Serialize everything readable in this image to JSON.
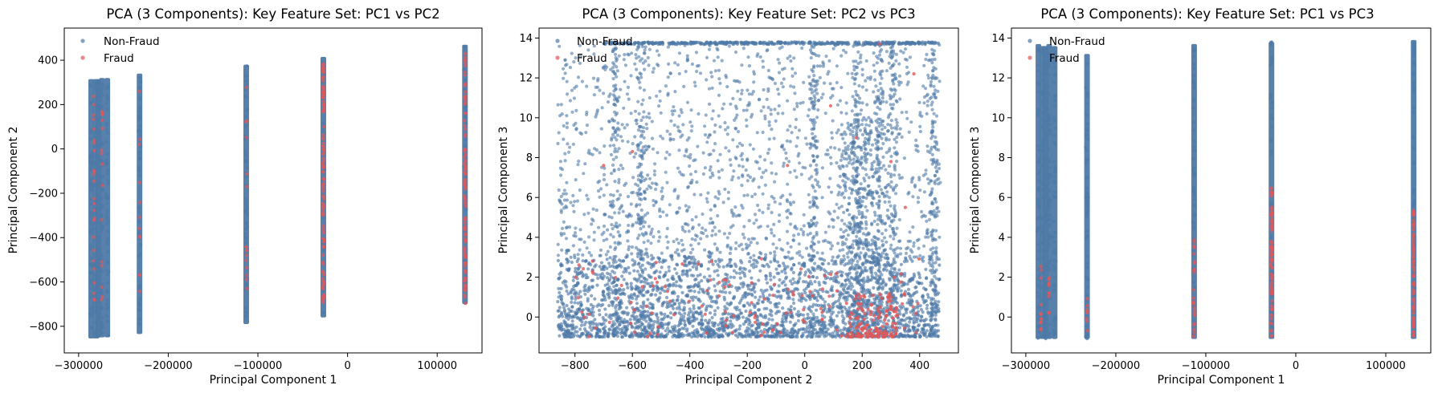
{
  "colors": {
    "nonfraud": "#4e79a7",
    "fraud": "#e15759"
  },
  "legend": {
    "nonfraud_label": "Non-Fraud",
    "fraud_label": "Fraud",
    "placement": "upper-left"
  },
  "chart_data": [
    {
      "type": "scatter",
      "title": "PCA (3 Components): Key Feature Set: PC1 vs PC2",
      "xlabel": "Principal Component 1",
      "ylabel": "Principal Component 2",
      "xlim": [
        -316000,
        150000
      ],
      "ylim": [
        -920,
        545
      ],
      "xticks": [
        -300000,
        -200000,
        -100000,
        0,
        100000
      ],
      "xtick_labels": [
        "−300000",
        "−200000",
        "−100000",
        "0",
        "100000"
      ],
      "yticks": [
        -800,
        -600,
        -400,
        -200,
        0,
        200,
        400
      ],
      "ytick_labels": [
        "−800",
        "−600",
        "−400",
        "−200",
        "0",
        "200",
        "400"
      ],
      "grid": false,
      "series": [
        {
          "name": "Non-Fraud",
          "pattern": "vertical-bands",
          "bands": [
            {
              "x": -286000,
              "ymin": -855,
              "ymax": 315
            },
            {
              "x": -281000,
              "ymin": -855,
              "ymax": 315
            },
            {
              "x": -278000,
              "ymin": -850,
              "ymax": 315
            },
            {
              "x": -274000,
              "ymin": -850,
              "ymax": 320
            },
            {
              "x": -268000,
              "ymin": -850,
              "ymax": 320
            },
            {
              "x": -232000,
              "ymin": -835,
              "ymax": 340
            },
            {
              "x": -113000,
              "ymin": -790,
              "ymax": 380
            },
            {
              "x": -27000,
              "ymin": -760,
              "ymax": 415
            },
            {
              "x": 131000,
              "ymin": -700,
              "ymax": 470
            }
          ]
        },
        {
          "name": "Fraud",
          "pattern": "vertical-bands",
          "bands": [
            {
              "x": -283000,
              "ymin": -800,
              "ymax": 250,
              "count": 25
            },
            {
              "x": -274000,
              "ymin": -740,
              "ymax": 200,
              "count": 15
            },
            {
              "x": -232000,
              "ymin": -650,
              "ymax": 300,
              "count": 12
            },
            {
              "x": -113000,
              "ymin": -700,
              "ymax": 300,
              "count": 15
            },
            {
              "x": -27000,
              "ymin": -700,
              "ymax": 410,
              "count": 120
            },
            {
              "x": 131000,
              "ymin": -700,
              "ymax": 460,
              "count": 100
            }
          ]
        }
      ]
    },
    {
      "type": "scatter",
      "title": "PCA (3 Components): Key Feature Set: PC2 vs PC3",
      "xlabel": "Principal Component 2",
      "ylabel": "Principal Component 3",
      "xlim": [
        -925,
        535
      ],
      "ylim": [
        -1.8,
        14.5
      ],
      "xticks": [
        -800,
        -600,
        -400,
        -200,
        0,
        200,
        400
      ],
      "xtick_labels": [
        "−800",
        "−600",
        "−400",
        "−200",
        "0",
        "200",
        "400"
      ],
      "yticks": [
        0,
        2,
        4,
        6,
        8,
        10,
        12,
        14
      ],
      "ytick_labels": [
        "0",
        "2",
        "4",
        "6",
        "8",
        "10",
        "12",
        "14"
      ],
      "grid": false,
      "series": [
        {
          "name": "Non-Fraud",
          "pattern": "dense-cloud",
          "x_range": [
            -860,
            470
          ],
          "y_range": [
            -1.0,
            13.8
          ],
          "dense_y_max": 3.0,
          "cap_y": 13.8,
          "vertical_concentrations": [
            -660,
            -570,
            30,
            180,
            260,
            310,
            450
          ]
        },
        {
          "name": "Fraud",
          "pattern": "low-band",
          "x_range": [
            -800,
            400
          ],
          "y_range": [
            -1.0,
            3.0
          ],
          "cluster_x_range": [
            150,
            320
          ],
          "outliers": [
            [
              -600,
              8.3
            ],
            [
              -700,
              7.6
            ],
            [
              90,
              10.6
            ],
            [
              180,
              9.0
            ],
            [
              300,
              7.8
            ],
            [
              350,
              5.5
            ],
            [
              380,
              12.2
            ],
            [
              260,
              13.7
            ],
            [
              -60,
              7.6
            ]
          ]
        }
      ]
    },
    {
      "type": "scatter",
      "title": "PCA (3 Components): Key Feature Set: PC1 vs PC3",
      "xlabel": "Principal Component 1",
      "ylabel": "Principal Component 3",
      "xlim": [
        -316000,
        150000
      ],
      "ylim": [
        -1.8,
        14.5
      ],
      "xticks": [
        -300000,
        -200000,
        -100000,
        0,
        100000
      ],
      "xtick_labels": [
        "−300000",
        "−200000",
        "−100000",
        "0",
        "100000"
      ],
      "yticks": [
        0,
        2,
        4,
        6,
        8,
        10,
        12,
        14
      ],
      "ytick_labels": [
        "0",
        "2",
        "4",
        "6",
        "8",
        "10",
        "12",
        "14"
      ],
      "grid": false,
      "series": [
        {
          "name": "Non-Fraud",
          "pattern": "vertical-bands",
          "bands": [
            {
              "x": -286000,
              "ymin": -1.1,
              "ymax": 13.7
            },
            {
              "x": -281000,
              "ymin": -1.1,
              "ymax": 13.6
            },
            {
              "x": -278000,
              "ymin": -1.1,
              "ymax": 13.6
            },
            {
              "x": -274000,
              "ymin": -1.1,
              "ymax": 13.7
            },
            {
              "x": -268000,
              "ymin": -1.1,
              "ymax": 13.6
            },
            {
              "x": -232000,
              "ymin": -1.1,
              "ymax": 13.2
            },
            {
              "x": -113000,
              "ymin": -1.1,
              "ymax": 13.7
            },
            {
              "x": -27000,
              "ymin": -1.1,
              "ymax": 13.8
            },
            {
              "x": 131000,
              "ymin": -1.1,
              "ymax": 13.9
            }
          ]
        },
        {
          "name": "Fraud",
          "pattern": "vertical-bands",
          "bands": [
            {
              "x": -283000,
              "ymin": -1.0,
              "ymax": 3.0,
              "count": 12
            },
            {
              "x": -274000,
              "ymin": -1.0,
              "ymax": 2.0,
              "count": 10
            },
            {
              "x": -232000,
              "ymin": -1.0,
              "ymax": 1.0,
              "count": 8
            },
            {
              "x": -113000,
              "ymin": -1.0,
              "ymax": 4.0,
              "count": 25
            },
            {
              "x": -27000,
              "ymin": -1.0,
              "ymax": 6.5,
              "count": 90
            },
            {
              "x": 131000,
              "ymin": -1.0,
              "ymax": 5.5,
              "count": 70
            }
          ]
        }
      ]
    }
  ]
}
